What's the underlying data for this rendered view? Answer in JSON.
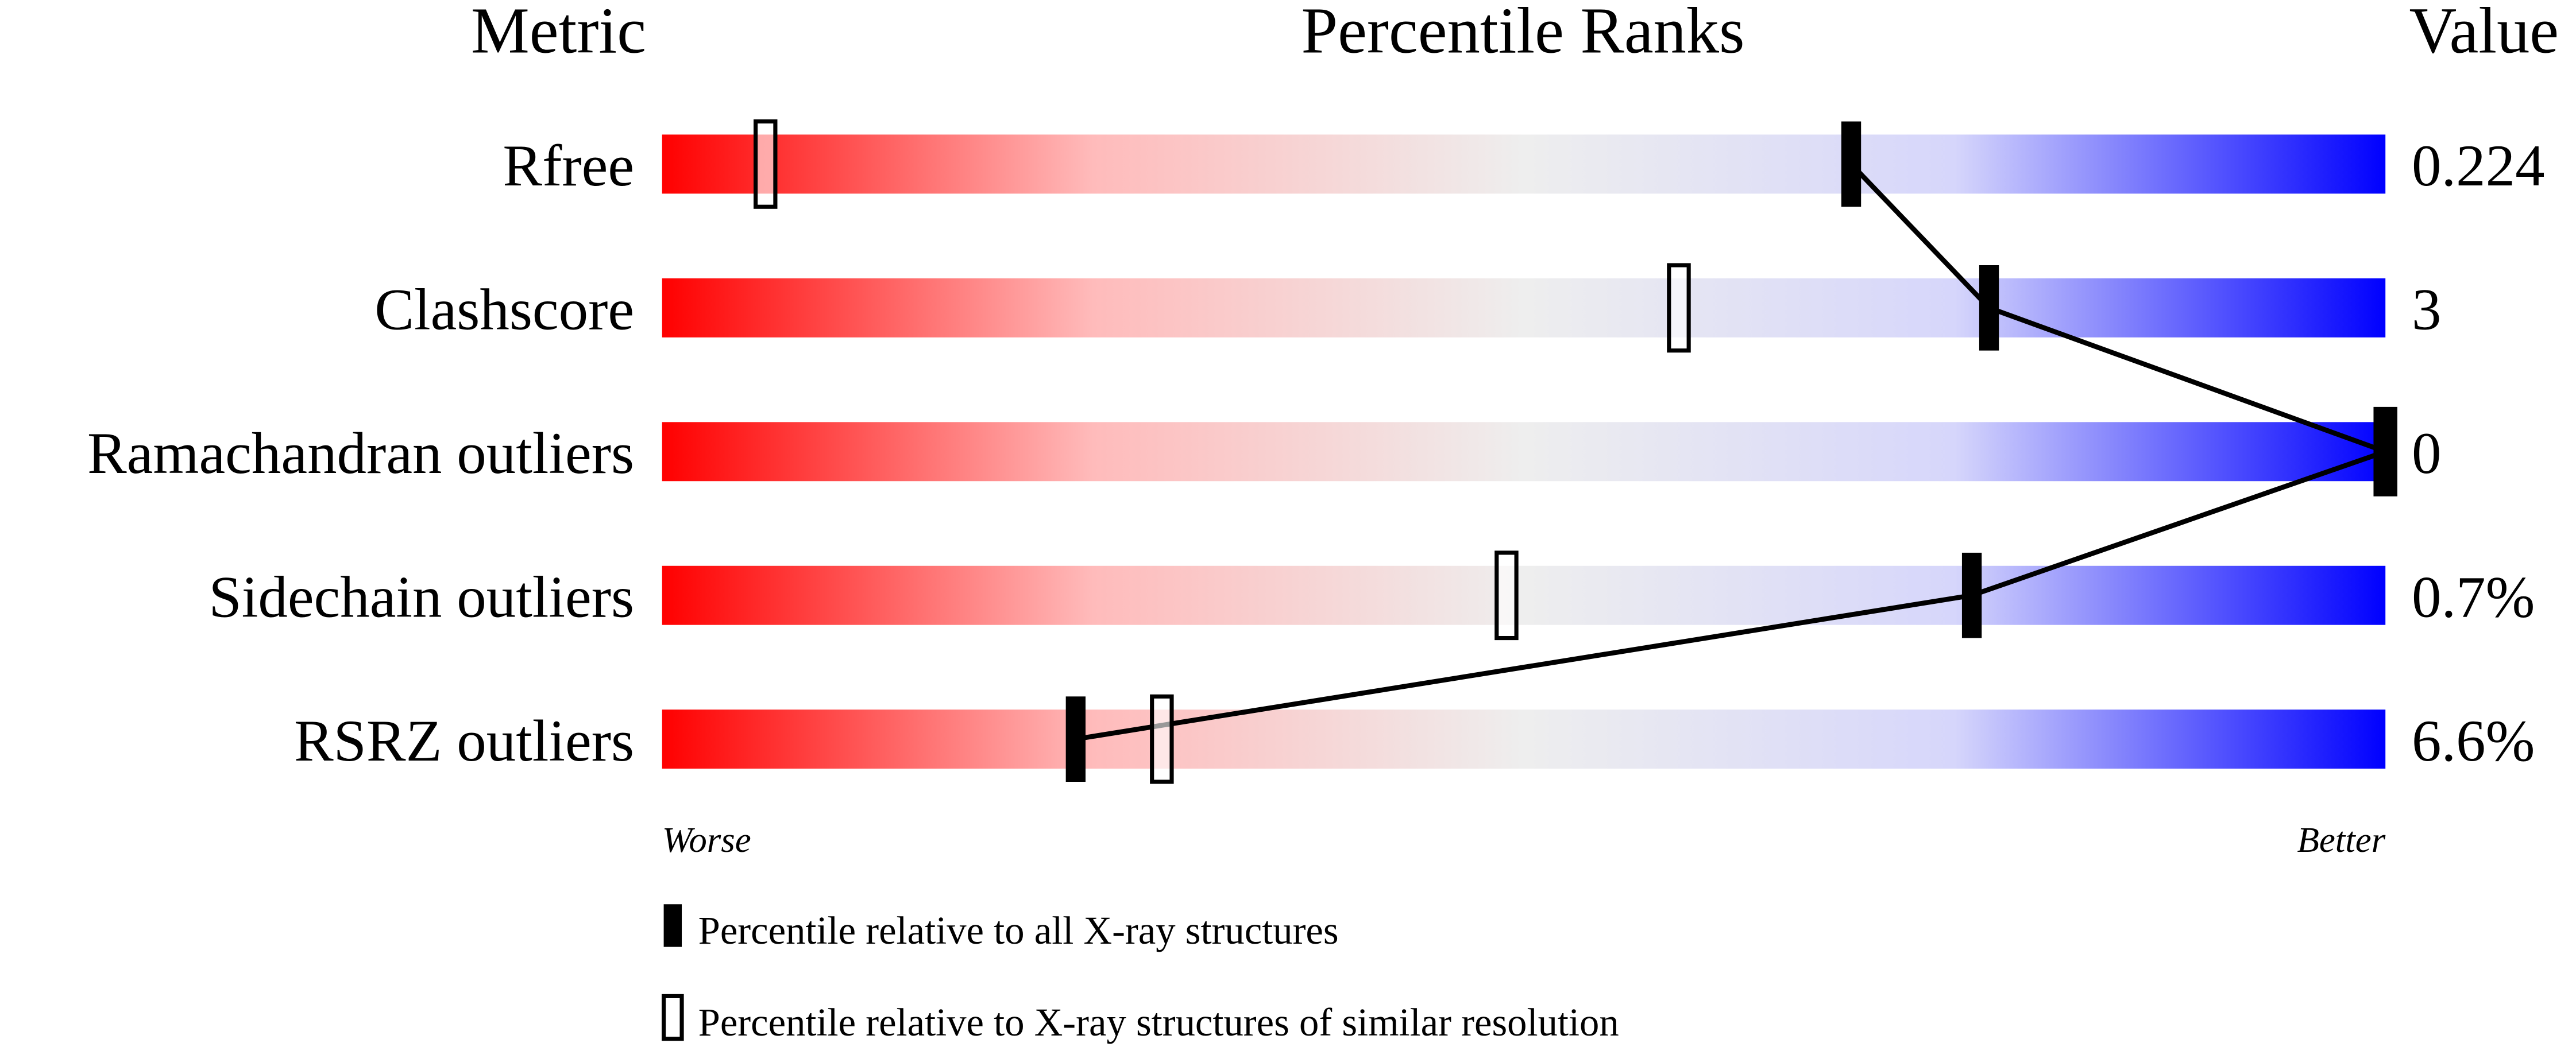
{
  "chart_data": {
    "type": "percentile",
    "headers": {
      "metric": "Metric",
      "percentile": "Percentile Ranks",
      "value": "Value"
    },
    "categories": [
      "Rfree",
      "Clashscore",
      "Ramachandran outliers",
      "Sidechain outliers",
      "RSRZ outliers"
    ],
    "metric_values": [
      "0.224",
      "3",
      "0",
      "0.7%",
      "6.6%"
    ],
    "series": [
      {
        "name": "Percentile relative to all X-ray structures",
        "color": "#000000",
        "style": "filled",
        "values": [
          69,
          77,
          100,
          76,
          24
        ]
      },
      {
        "name": "Percentile relative to X-ray structures of similar resolution",
        "color": "#000000",
        "style": "hollow",
        "values": [
          6,
          59,
          100,
          49,
          29
        ]
      }
    ],
    "xlim": [
      0,
      100
    ],
    "axis_labels": {
      "low": "Worse",
      "high": "Better"
    },
    "gradient": [
      "#ff0000",
      "#ffbbbb",
      "#eeeeee",
      "#d6d6fb",
      "#0000ff"
    ]
  }
}
